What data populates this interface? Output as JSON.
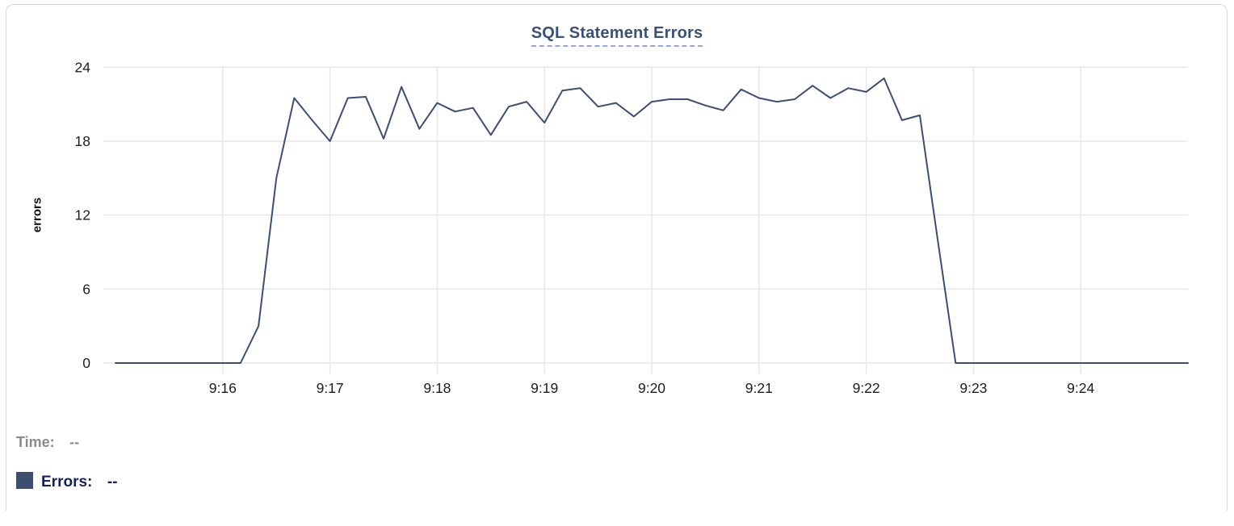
{
  "chart": {
    "title": "SQL Statement Errors",
    "ylabel": "errors"
  },
  "legend": {
    "time_label": "Time:",
    "time_value": "--",
    "errors_label": "Errors:",
    "errors_value": "--",
    "swatch_color": "#3e4f6d"
  },
  "colors": {
    "line": "#3e4e6b",
    "grid": "#e7e7e7",
    "title": "#3d5170",
    "title_underline": "#9aa7c6",
    "tick_text": "#1c1c1c",
    "time_legend_gray": "#8a8a8a",
    "errors_legend_navy": "#17234f",
    "card_border": "#d9d9d9"
  },
  "chart_data": {
    "type": "line",
    "title": "SQL Statement Errors",
    "xlabel": "",
    "ylabel": "errors",
    "ylim": [
      0,
      24
    ],
    "y_ticks": [
      0,
      6,
      12,
      18,
      24
    ],
    "grid": true,
    "legend_position": "bottom-left",
    "x_start_time": "9:15:00",
    "x_end_time": "9:25:00",
    "sample_interval_seconds": 10,
    "x_range_seconds": [
      0,
      600
    ],
    "x_tick_seconds": [
      60,
      120,
      180,
      240,
      300,
      360,
      420,
      480,
      540
    ],
    "x_tick_labels": [
      "9:16",
      "9:17",
      "9:18",
      "9:19",
      "9:20",
      "9:21",
      "9:22",
      "9:23",
      "9:24"
    ],
    "series": [
      {
        "name": "Errors",
        "color": "#3e4e6b",
        "values": [
          0,
          0,
          0,
          0,
          0,
          0,
          0,
          0,
          3,
          15,
          21.5,
          19.7,
          18,
          21.5,
          21.6,
          18.2,
          22.4,
          19,
          21.1,
          20.4,
          20.7,
          18.5,
          20.8,
          21.2,
          19.5,
          22.1,
          22.3,
          20.8,
          21.1,
          20,
          21.2,
          21.4,
          21.4,
          20.9,
          20.5,
          22.2,
          21.5,
          21.2,
          21.4,
          22.5,
          21.5,
          22.3,
          22,
          23.1,
          19.7,
          20.1,
          10,
          0,
          0,
          0,
          0,
          0,
          0,
          0,
          0,
          0,
          0,
          0,
          0,
          0,
          0
        ]
      }
    ]
  }
}
